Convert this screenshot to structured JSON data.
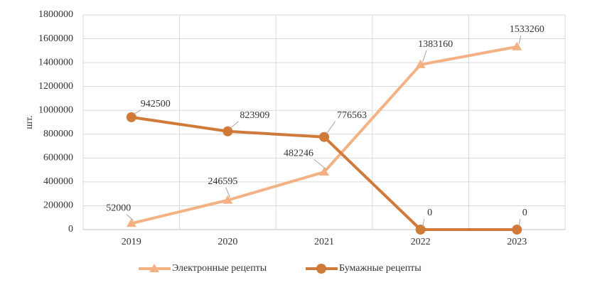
{
  "chart_data": {
    "type": "line",
    "y_label": "шт.",
    "categories": [
      "2019",
      "2020",
      "2021",
      "2022",
      "2023"
    ],
    "series": [
      {
        "name": "Электронные рецепты",
        "color": "#f4b183",
        "marker": "triangle",
        "values": [
          52000,
          246595,
          482246,
          1383160,
          1533260
        ]
      },
      {
        "name": "Бумажные рецепты",
        "color": "#d07a3a",
        "marker": "circle",
        "values": [
          942500,
          823909,
          776563,
          0,
          0
        ]
      }
    ],
    "ylim": [
      0,
      1800000
    ],
    "yticks": [
      0,
      200000,
      400000,
      600000,
      800000,
      1000000,
      1200000,
      1400000,
      1600000,
      1800000
    ],
    "grid": true,
    "legend": "bottom"
  }
}
